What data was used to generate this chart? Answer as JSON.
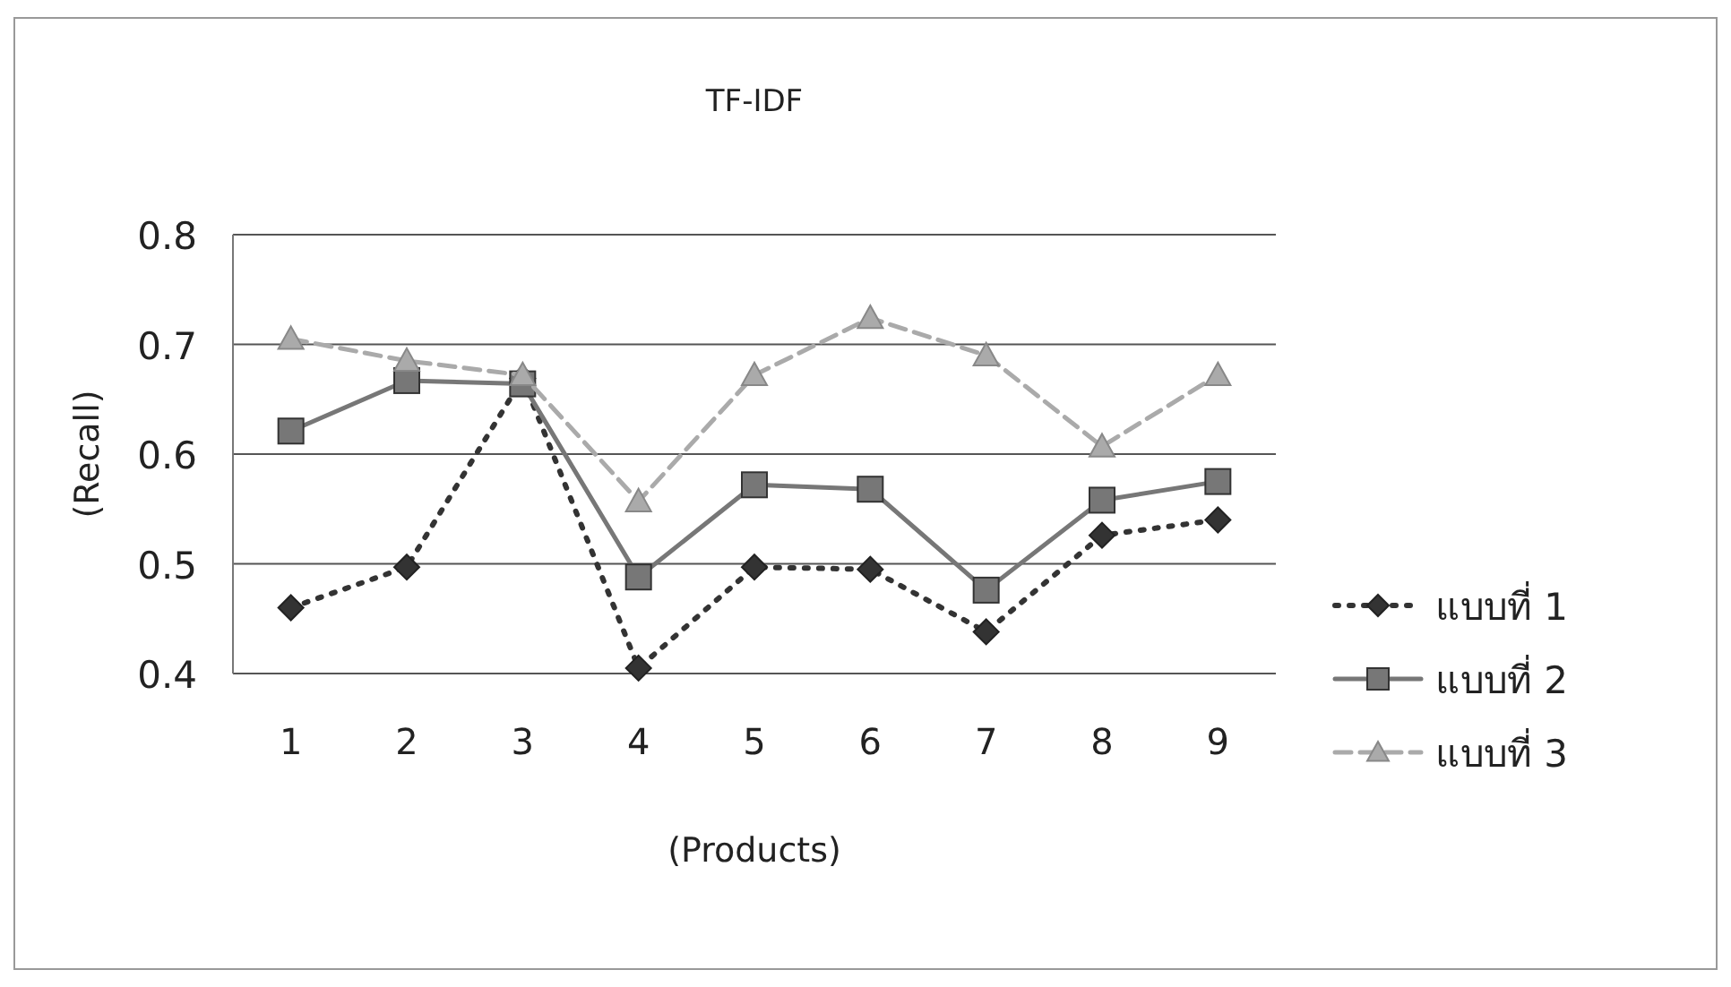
{
  "chart_data": {
    "type": "line",
    "title": "TF-IDF",
    "xlabel": "(Products)",
    "ylabel": "(Recall)",
    "categories": [
      "1",
      "2",
      "3",
      "4",
      "5",
      "6",
      "7",
      "8",
      "9"
    ],
    "series": [
      {
        "name": "แบบที่ 1",
        "color": "#333333",
        "marker": "diamond",
        "line_style": "dotted",
        "values": [
          0.46,
          0.497,
          0.669,
          0.405,
          0.497,
          0.495,
          0.438,
          0.526,
          0.54
        ]
      },
      {
        "name": "แบบที่ 2",
        "color": "#777777",
        "marker": "square",
        "line_style": "solid",
        "values": [
          0.621,
          0.667,
          0.664,
          0.488,
          0.572,
          0.568,
          0.476,
          0.558,
          0.575
        ]
      },
      {
        "name": "แบบที่ 3",
        "color": "#aaaaaa",
        "marker": "triangle",
        "line_style": "dashed",
        "values": [
          0.705,
          0.685,
          0.672,
          0.557,
          0.672,
          0.724,
          0.69,
          0.607,
          0.672
        ]
      }
    ],
    "ylim": [
      0.4,
      0.8
    ],
    "yticks": [
      0.4,
      0.5,
      0.6,
      0.7,
      0.8
    ],
    "grid": "y",
    "legend": "right"
  }
}
